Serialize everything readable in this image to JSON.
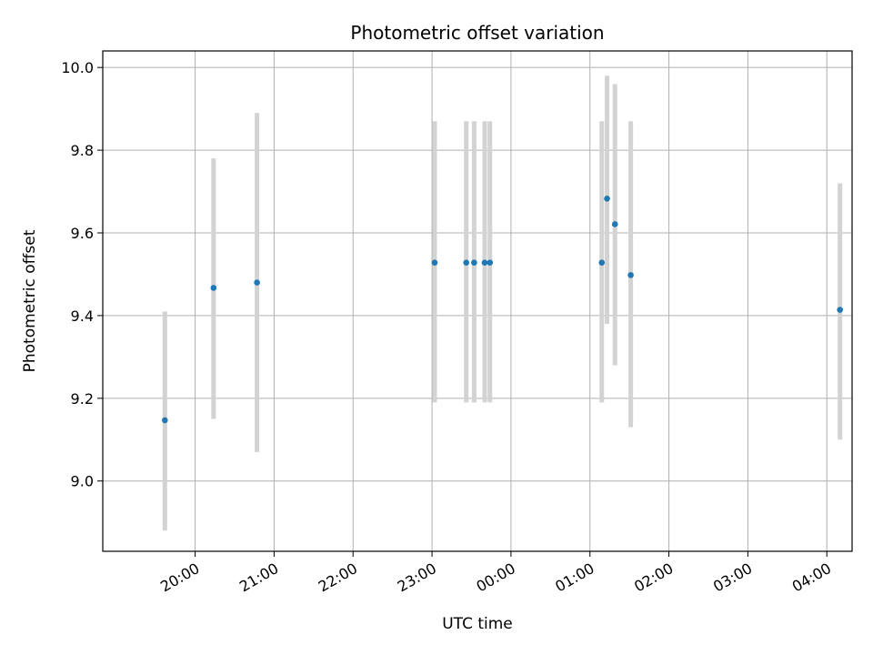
{
  "chart_data": {
    "type": "scatter",
    "title": "Photometric offset variation",
    "xlabel": "UTC time",
    "ylabel": "Photometric offset",
    "x_ticks": [
      "20:00",
      "21:00",
      "22:00",
      "23:00",
      "00:00",
      "01:00",
      "02:00",
      "03:00",
      "04:00"
    ],
    "y_ticks": [
      "9.0",
      "9.2",
      "9.4",
      "9.6",
      "9.8",
      "10.0"
    ],
    "xlim_hours": [
      18.83,
      28.32
    ],
    "ylim": [
      8.83,
      10.04
    ],
    "grid": true,
    "point_color": "#1f77b4",
    "errorbar_color": "#d3d3d3",
    "points": [
      {
        "time": "19:37",
        "value": 9.147,
        "low": 8.88,
        "high": 9.41
      },
      {
        "time": "20:14",
        "value": 9.467,
        "low": 9.15,
        "high": 9.78
      },
      {
        "time": "20:47",
        "value": 9.48,
        "low": 9.07,
        "high": 9.89
      },
      {
        "time": "23:02",
        "value": 9.528,
        "low": 9.19,
        "high": 9.87
      },
      {
        "time": "23:26",
        "value": 9.528,
        "low": 9.19,
        "high": 9.87
      },
      {
        "time": "23:32",
        "value": 9.528,
        "low": 9.19,
        "high": 9.87
      },
      {
        "time": "23:40",
        "value": 9.528,
        "low": 9.19,
        "high": 9.87
      },
      {
        "time": "23:44",
        "value": 9.528,
        "low": 9.19,
        "high": 9.87
      },
      {
        "time": "01:09",
        "value": 9.528,
        "low": 9.19,
        "high": 9.87
      },
      {
        "time": "01:13",
        "value": 9.683,
        "low": 9.38,
        "high": 9.98
      },
      {
        "time": "01:19",
        "value": 9.621,
        "low": 9.28,
        "high": 9.96
      },
      {
        "time": "01:31",
        "value": 9.498,
        "low": 9.13,
        "high": 9.87
      },
      {
        "time": "04:10",
        "value": 9.414,
        "low": 9.1,
        "high": 9.72
      }
    ]
  }
}
